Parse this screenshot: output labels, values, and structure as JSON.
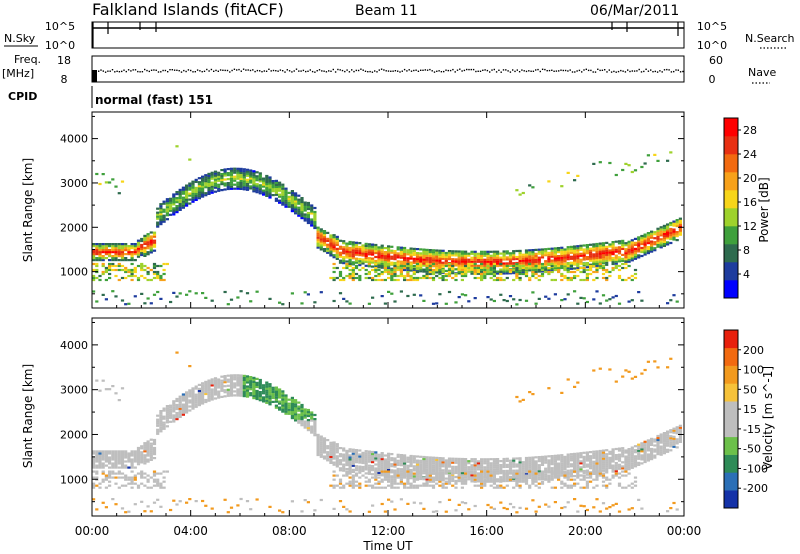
{
  "header": {
    "station": "Falkland Islands (fitACF)",
    "beam": "Beam 11",
    "date": "06/Mar/2011"
  },
  "aux_panels": {
    "nsky": {
      "label": "N.Sky",
      "ticks": [
        "10^5",
        "10^0"
      ]
    },
    "nsearch": {
      "label": "N.Search",
      "ticks": [
        "10^5",
        "10^0"
      ]
    },
    "freq": {
      "label": "Freq.",
      "unit": "[MHz]",
      "ticks": [
        "18",
        "8"
      ]
    },
    "nave": {
      "label": "Nave",
      "ticks": [
        "60",
        "0"
      ]
    },
    "cpid": {
      "label": "CPID",
      "value": "normal (fast) 151"
    }
  },
  "chart_data": [
    {
      "type": "heatmap",
      "title": "",
      "xlabel": "Time UT",
      "ylabel": "Slant Range [km]",
      "x_ticks": [
        "00:00",
        "04:00",
        "08:00",
        "12:00",
        "16:00",
        "20:00",
        "00:00"
      ],
      "y_ticks": [
        1000,
        2000,
        3000,
        4000
      ],
      "xlim_hours": [
        0,
        24
      ],
      "ylim_km": [
        180,
        4600
      ],
      "colorbar": {
        "label": "Power [dB]",
        "ticks": [
          4,
          8,
          12,
          16,
          20,
          24,
          28
        ],
        "range": [
          0,
          30
        ],
        "colors": [
          "#0000ff",
          "#1e3c9e",
          "#2e6b4e",
          "#3fa03c",
          "#9ed22c",
          "#f7d51a",
          "#f7a11a",
          "#f26a10",
          "#e83012",
          "#ff0000"
        ]
      },
      "echo_bands": [
        {
          "name": "ground scatter",
          "range_km": [
            1000,
            1800
          ],
          "peak_db": 28
        },
        {
          "name": "ionospheric arc",
          "range_km": [
            1600,
            3300
          ],
          "peak_db": 14
        }
      ]
    },
    {
      "type": "heatmap",
      "title": "",
      "xlabel": "Time UT",
      "ylabel": "Slant Range [km]",
      "x_ticks": [
        "00:00",
        "04:00",
        "08:00",
        "12:00",
        "16:00",
        "20:00",
        "00:00"
      ],
      "y_ticks": [
        1000,
        2000,
        3000,
        4000
      ],
      "xlim_hours": [
        0,
        24
      ],
      "ylim_km": [
        180,
        4600
      ],
      "colorbar": {
        "label": "Velocity [m s^-1]",
        "ticks": [
          200,
          100,
          50,
          15,
          -15,
          -50,
          -100,
          -200
        ],
        "range": [
          -250,
          250
        ],
        "colors": [
          "#1432a8",
          "#2b6fb6",
          "#2e8b57",
          "#6cc04a",
          "#bebebe",
          "#bebebe",
          "#f6c23a",
          "#f29a1e",
          "#f26a10",
          "#e8200c"
        ]
      }
    }
  ],
  "colors": {
    "ground_scatter": "#bebebe",
    "axis": "#000000"
  }
}
